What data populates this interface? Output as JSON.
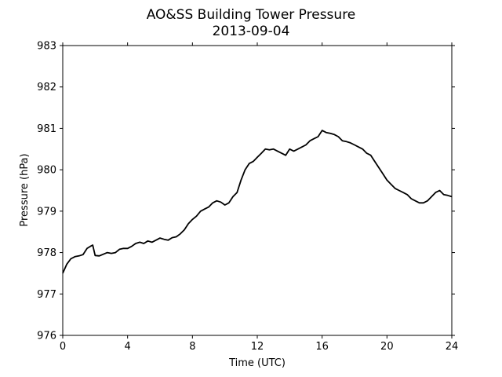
{
  "chart_data": {
    "type": "line",
    "title": "AO&SS Building Tower Pressure",
    "subtitle": "2013-09-04",
    "xlabel": "Time (UTC)",
    "ylabel": "Pressure (hPa)",
    "xlim": [
      0,
      24
    ],
    "ylim": [
      976,
      983
    ],
    "xticks": [
      0,
      4,
      8,
      12,
      16,
      20,
      24
    ],
    "yticks": [
      976,
      977,
      978,
      979,
      980,
      981,
      982,
      983
    ],
    "grid": false,
    "legend": "none",
    "colors": {
      "line": "#000000"
    },
    "series": [
      {
        "x": [
          0,
          0.25,
          0.5,
          0.75,
          1.0,
          1.25,
          1.5,
          1.7,
          1.85,
          2.0,
          2.25,
          2.5,
          2.75,
          3.0,
          3.25,
          3.5,
          3.75,
          4.0,
          4.25,
          4.5,
          4.75,
          5.0,
          5.25,
          5.5,
          5.75,
          6.0,
          6.25,
          6.5,
          6.75,
          7.0,
          7.25,
          7.5,
          7.75,
          8.0,
          8.25,
          8.5,
          8.75,
          9.0,
          9.25,
          9.5,
          9.75,
          10.0,
          10.25,
          10.5,
          10.75,
          11.0,
          11.25,
          11.5,
          11.75,
          12.0,
          12.25,
          12.5,
          12.75,
          13.0,
          13.25,
          13.5,
          13.75,
          14.0,
          14.25,
          14.5,
          14.75,
          15.0,
          15.25,
          15.5,
          15.75,
          16.0,
          16.25,
          16.5,
          16.75,
          17.0,
          17.25,
          17.5,
          17.75,
          18.0,
          18.25,
          18.5,
          18.75,
          19.0,
          19.25,
          19.5,
          19.75,
          20.0,
          20.25,
          20.5,
          20.75,
          21.0,
          21.25,
          21.5,
          21.75,
          22.0,
          22.25,
          22.5,
          22.75,
          23.0,
          23.25,
          23.5,
          23.75,
          24.0
        ],
        "values": [
          977.5,
          977.72,
          977.85,
          977.9,
          977.92,
          977.95,
          978.1,
          978.15,
          978.18,
          977.93,
          977.92,
          977.96,
          978.0,
          977.98,
          978.0,
          978.08,
          978.1,
          978.1,
          978.15,
          978.22,
          978.25,
          978.22,
          978.28,
          978.25,
          978.3,
          978.35,
          978.32,
          978.3,
          978.36,
          978.38,
          978.45,
          978.55,
          978.7,
          978.8,
          978.88,
          979.0,
          979.05,
          979.1,
          979.2,
          979.25,
          979.22,
          979.15,
          979.2,
          979.35,
          979.45,
          979.75,
          980.0,
          980.15,
          980.2,
          980.3,
          980.4,
          980.5,
          980.48,
          980.5,
          980.45,
          980.4,
          980.35,
          980.5,
          980.45,
          980.5,
          980.55,
          980.6,
          980.7,
          980.75,
          980.8,
          980.95,
          980.9,
          980.88,
          980.85,
          980.8,
          980.7,
          980.68,
          980.65,
          980.6,
          980.55,
          980.5,
          980.4,
          980.35,
          980.2,
          980.05,
          979.9,
          979.75,
          979.65,
          979.55,
          979.5,
          979.45,
          979.4,
          979.3,
          979.25,
          979.2,
          979.2,
          979.25,
          979.35,
          979.45,
          979.5,
          979.4,
          979.38,
          979.35
        ]
      }
    ]
  }
}
